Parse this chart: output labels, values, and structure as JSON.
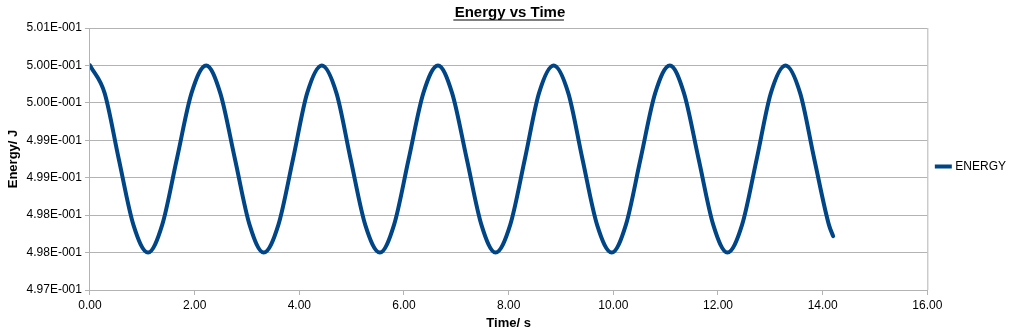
{
  "chart_data": {
    "type": "line",
    "title": "Energy vs Time",
    "xlabel": "Time/ s",
    "ylabel": "Energy/ J",
    "x": [
      0.0,
      0.28,
      0.55,
      0.83,
      1.11,
      1.38,
      1.66,
      1.94,
      2.22,
      2.49,
      2.77,
      3.05,
      3.32,
      3.6,
      3.88,
      4.15,
      4.43,
      4.71,
      4.98,
      5.26,
      5.54,
      5.81,
      6.09,
      6.37,
      6.65,
      6.92,
      7.2,
      7.48,
      7.75,
      8.03,
      8.31,
      8.58,
      8.86,
      9.14,
      9.41,
      9.69,
      9.97,
      10.24,
      10.52,
      10.8,
      11.08,
      11.35,
      11.63,
      11.91,
      12.18,
      12.46,
      12.74,
      13.01,
      13.29,
      13.57,
      13.84,
      14.12,
      14.2
    ],
    "series": [
      {
        "name": "ENERGY",
        "color": "#004586",
        "values": [
          0.5005,
          0.50013,
          0.49925,
          0.49837,
          0.498,
          0.49837,
          0.49925,
          0.50013,
          0.5005,
          0.50013,
          0.49925,
          0.49837,
          0.498,
          0.49837,
          0.49925,
          0.50013,
          0.5005,
          0.50013,
          0.49925,
          0.49837,
          0.498,
          0.49837,
          0.49925,
          0.50013,
          0.5005,
          0.50013,
          0.49925,
          0.49837,
          0.498,
          0.49837,
          0.49925,
          0.50013,
          0.5005,
          0.50013,
          0.49925,
          0.49837,
          0.498,
          0.49837,
          0.49925,
          0.50013,
          0.5005,
          0.50013,
          0.49925,
          0.49837,
          0.498,
          0.49837,
          0.49925,
          0.50013,
          0.5005,
          0.50013,
          0.49925,
          0.49837,
          0.49822
        ]
      }
    ],
    "xlim": [
      0,
      16
    ],
    "xticks": [
      {
        "value": 0,
        "label": "0.00"
      },
      {
        "value": 2,
        "label": "2.00"
      },
      {
        "value": 4,
        "label": "4.00"
      },
      {
        "value": 6,
        "label": "6.00"
      },
      {
        "value": 8,
        "label": "8.00"
      },
      {
        "value": 10,
        "label": "10.00"
      },
      {
        "value": 12,
        "label": "12.00"
      },
      {
        "value": 14,
        "label": "14.00"
      },
      {
        "value": 16,
        "label": "16.00"
      }
    ],
    "ylim": [
      0.4975,
      0.501
    ],
    "yticks": [
      {
        "value": 0.4975,
        "label": "4.97E-001"
      },
      {
        "value": 0.498,
        "label": "4.98E-001"
      },
      {
        "value": 0.4985,
        "label": "4.98E-001"
      },
      {
        "value": 0.499,
        "label": "4.99E-001"
      },
      {
        "value": 0.4995,
        "label": "4.99E-001"
      },
      {
        "value": 0.5,
        "label": "5.00E-001"
      },
      {
        "value": 0.5005,
        "label": "5.00E-001"
      },
      {
        "value": 0.501,
        "label": "5.01E-001"
      }
    ],
    "grid": "y",
    "legend": "right",
    "marker": "none",
    "line_style": "solid"
  }
}
